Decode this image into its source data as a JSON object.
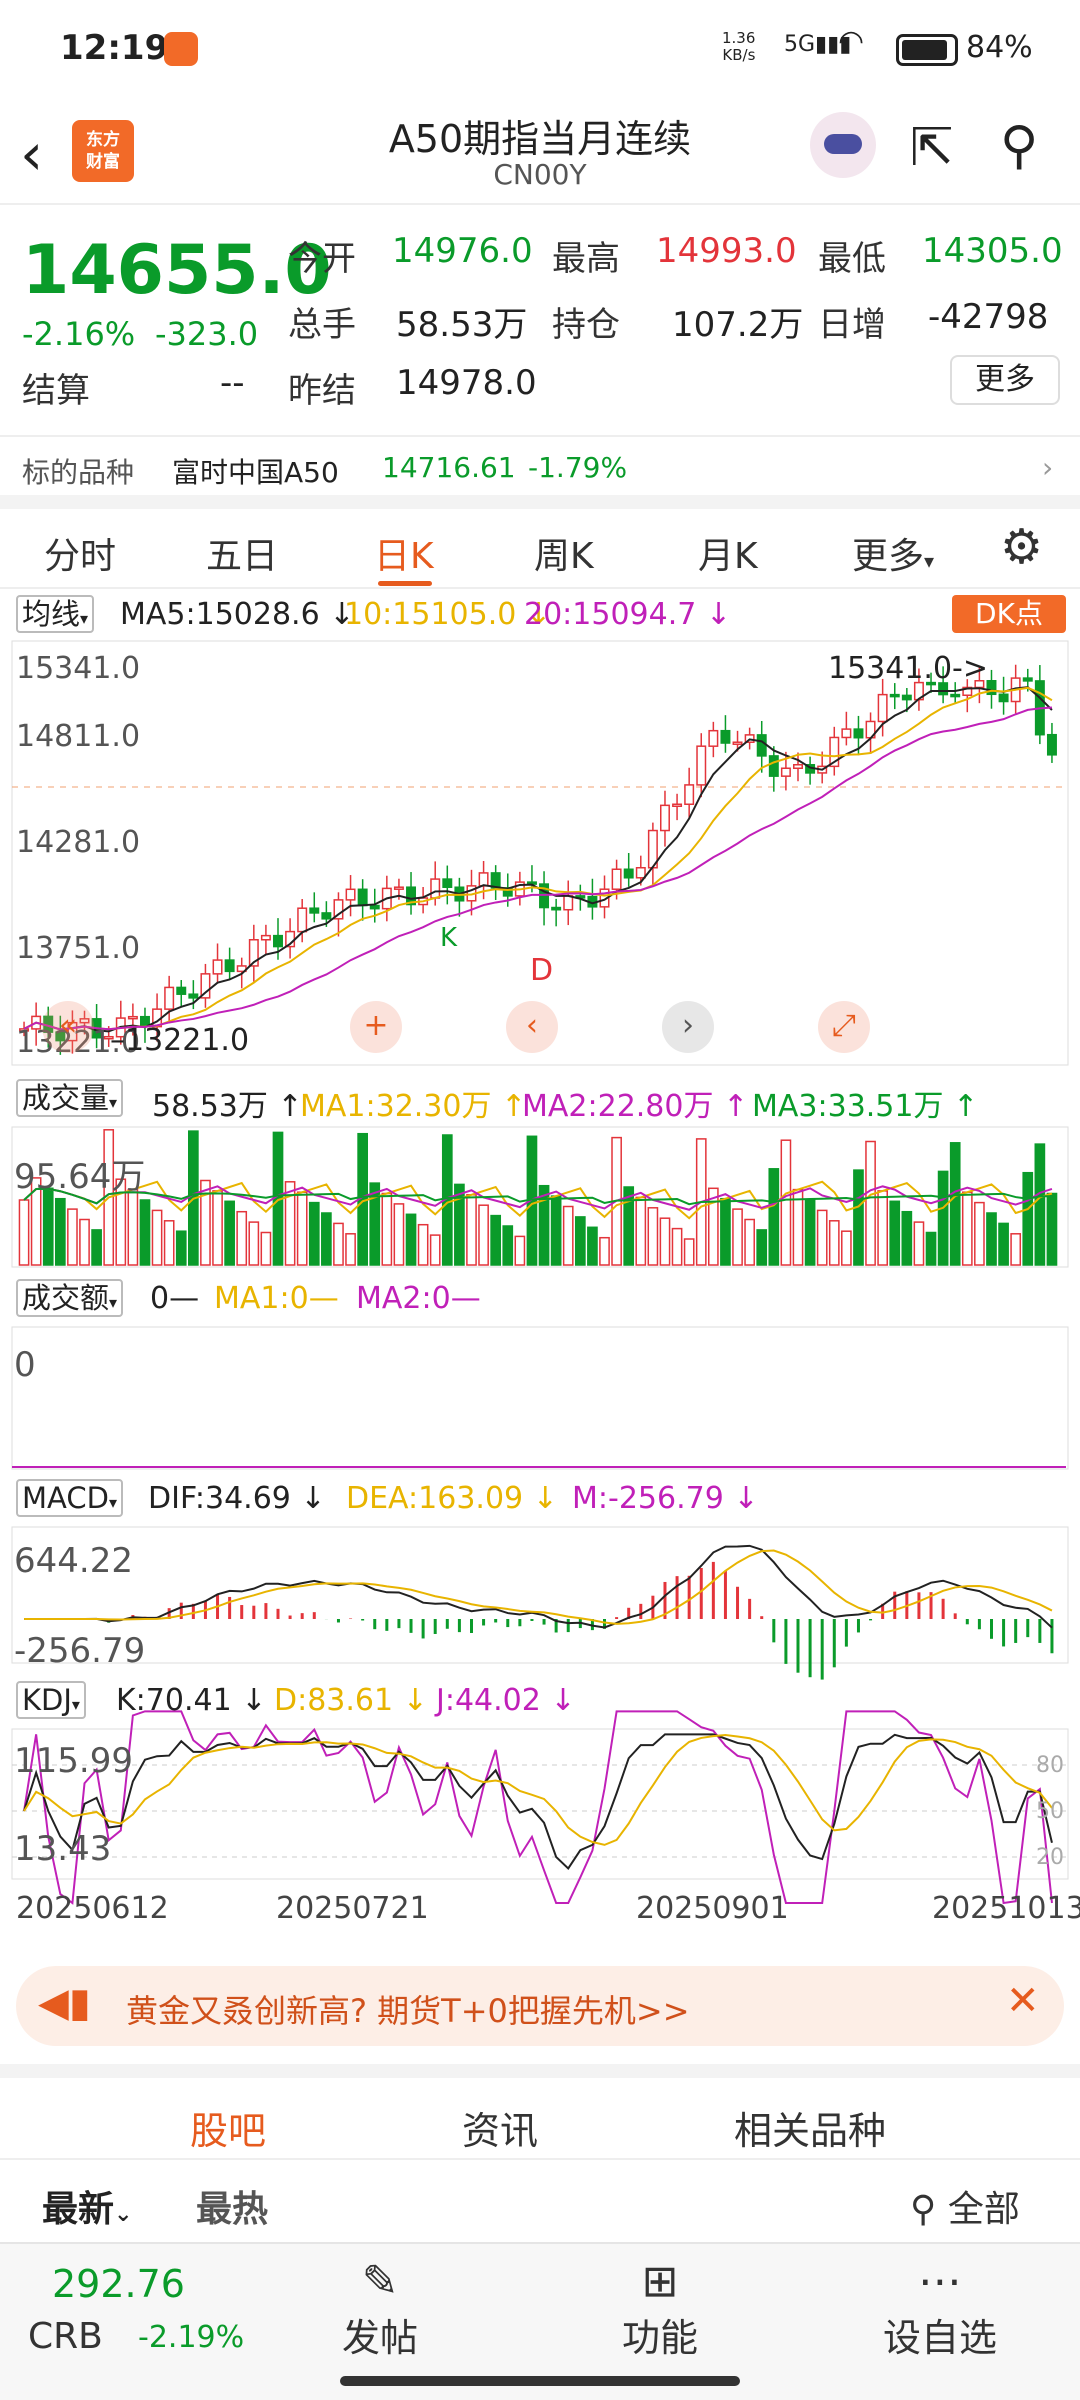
{
  "status": {
    "time": "12:19",
    "speed_top": "1.36",
    "speed_bottom": "KB/s",
    "network": "5G",
    "battery": "84%"
  },
  "nav": {
    "logo_text_1": "东方",
    "logo_text_2": "财富",
    "title": "A50期指当月连续",
    "code": "CN00Y"
  },
  "quote": {
    "price": "14655.0",
    "change_pct": "-2.16%",
    "change": "-323.0",
    "open_label": "今开",
    "open": "14976.0",
    "high_label": "最高",
    "high": "14993.0",
    "low_label": "最低",
    "low": "14305.0",
    "vol_label": "总手",
    "vol": "58.53万",
    "oi_label": "持仓",
    "oi": "107.2万",
    "inc_label": "日增",
    "inc": "-42798",
    "settle_label": "结算",
    "settle": "--",
    "prev_label": "昨结",
    "prev": "14978.0",
    "more": "更多",
    "underlying_label": "标的品种",
    "underlying_name": "富时中国A50",
    "underlying_price": "14716.61",
    "underlying_pct": "-1.79%"
  },
  "tabs": [
    "分时",
    "五日",
    "日K",
    "周K",
    "月K",
    "更多"
  ],
  "chart": {
    "ma_dropdown": "均线",
    "ma5": "MA5:15028.6",
    "ma10": "10:15105.0",
    "ma20": "20:15094.7",
    "dk_button": "DK点",
    "price_ticks": [
      "15341.0",
      "14811.0",
      "14281.0",
      "13751.0",
      "13221.0"
    ],
    "max_label": "15341.0->",
    "min_label": "13221.0",
    "signal_k": "K",
    "signal_d": "D",
    "vol_dropdown": "成交量",
    "vol_val": "58.53万",
    "vol_ma1": "MA1:32.30万",
    "vol_ma2": "MA2:22.80万",
    "vol_ma3": "MA3:33.51万",
    "vol_tick": "95.64万",
    "amt_dropdown": "成交额",
    "amt_val": "0—",
    "amt_ma1": "MA1:0—",
    "amt_ma2": "MA2:0—",
    "amt_tick": "0",
    "macd_dropdown": "MACD",
    "dif": "DIF:34.69",
    "dea": "DEA:163.09",
    "m": "M:-256.79",
    "macd_top": "644.22",
    "macd_bottom": "-256.79",
    "kdj_dropdown": "KDJ",
    "k": "K:70.41",
    "d": "D:83.61",
    "j": "J:44.02",
    "kdj_top": "115.99",
    "kdj_bottom": "13.43",
    "kdj_lines": [
      "80",
      "50",
      "20"
    ],
    "dates": [
      "20250612",
      "20250721",
      "20250901",
      "20251013"
    ]
  },
  "colors": {
    "up": "#e3343a",
    "down": "#0a9b2a",
    "accent": "#e65b1e",
    "ma5": "#222222",
    "ma10": "#e8b400",
    "ma20": "#c020b8"
  },
  "banner": {
    "text": "黄金又叒创新高? 期货T+0把握先机>>"
  },
  "bottom_tabs": [
    "股吧",
    "资讯",
    "相关品种"
  ],
  "sort": {
    "latest": "最新",
    "hot": "最热",
    "all": "全部"
  },
  "footer": {
    "price": "292.76",
    "name": "CRB",
    "pct": "-2.19%",
    "post": "发帖",
    "func": "功能",
    "watch": "设自选"
  }
}
